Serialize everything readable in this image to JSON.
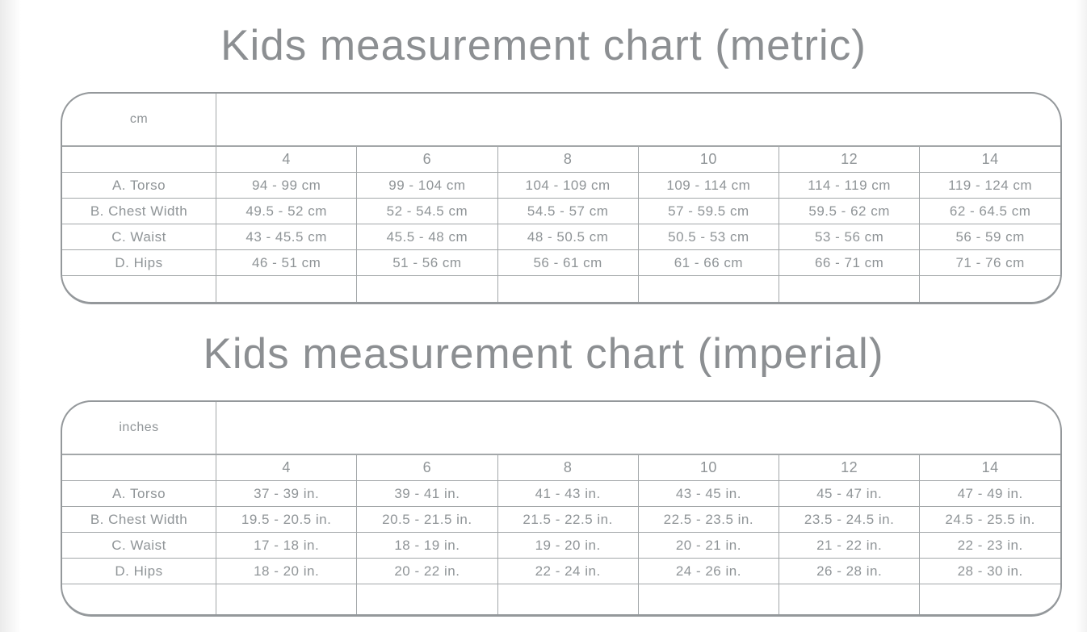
{
  "metric": {
    "title": "Kids measurement chart (metric)",
    "table": {
      "unit": "cm",
      "sizes": [
        "4",
        "6",
        "8",
        "10",
        "12",
        "14"
      ],
      "rows": [
        {
          "label": "A. Torso",
          "values": [
            "94 - 99 cm",
            "99 - 104 cm",
            "104 - 109 cm",
            "109 - 114 cm",
            "114 - 119 cm",
            "119 - 124 cm"
          ]
        },
        {
          "label": "B. Chest Width",
          "values": [
            "49.5 - 52 cm",
            "52 - 54.5 cm",
            "54.5 - 57 cm",
            "57 - 59.5 cm",
            "59.5 - 62 cm",
            "62 - 64.5 cm"
          ]
        },
        {
          "label": "C. Waist",
          "values": [
            "43 - 45.5 cm",
            "45.5 - 48 cm",
            "48 - 50.5 cm",
            "50.5 - 53 cm",
            "53 - 56 cm",
            "56 - 59 cm"
          ]
        },
        {
          "label": "D. Hips",
          "values": [
            "46 - 51 cm",
            "51 - 56 cm",
            "56 - 61 cm",
            "61 - 66 cm",
            "66 - 71 cm",
            "71 - 76 cm"
          ]
        }
      ]
    }
  },
  "imperial": {
    "title": "Kids measurement chart (imperial)",
    "table": {
      "unit": "inches",
      "sizes": [
        "4",
        "6",
        "8",
        "10",
        "12",
        "14"
      ],
      "rows": [
        {
          "label": "A. Torso",
          "values": [
            "37 - 39 in.",
            "39 - 41 in.",
            "41 - 43 in.",
            "43 - 45 in.",
            "45 - 47 in.",
            "47 - 49 in."
          ]
        },
        {
          "label": "B. Chest Width",
          "values": [
            "19.5 - 20.5 in.",
            "20.5 - 21.5 in.",
            "21.5 - 22.5 in.",
            "22.5 - 23.5 in.",
            "23.5 - 24.5 in.",
            "24.5 - 25.5 in."
          ]
        },
        {
          "label": "C. Waist",
          "values": [
            "17 - 18 in.",
            "18 - 19 in.",
            "19 - 20 in.",
            "20 - 21 in.",
            "21 - 22 in.",
            "22 - 23 in."
          ]
        },
        {
          "label": "D. Hips",
          "values": [
            "18 - 20 in.",
            "20 - 22 in.",
            "22 - 24 in.",
            "24 - 26 in.",
            "26 - 28 in.",
            "28 - 30 in."
          ]
        }
      ]
    }
  },
  "colors": {
    "title_text": "#8c8f92",
    "table_text": "#8f9497",
    "border": "#a3a7a9",
    "outer_border": "#94989b",
    "background": "#ffffff"
  }
}
